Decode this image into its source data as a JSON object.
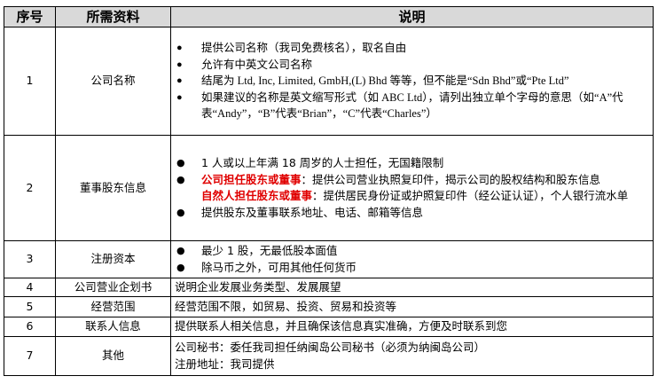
{
  "headers": [
    "序号",
    "所需资料",
    "说明"
  ],
  "rows": [
    {
      "no": "1",
      "item": "公司名称",
      "lines": [
        {
          "text": "提供公司名称（我司免费核名），取名自由"
        },
        {
          "text": "允许有中英文公司名称"
        },
        {
          "text": "结尾为 Ltd, Inc, Limited, GmbH,(L) Bhd 等等，但不能是“Sdn Bhd”或“Pte Ltd”"
        },
        {
          "text": " 如果建议的名称是英文缩写形式（如 ABC Ltd），请列出独立单个字母的意思（如“A”代表“Andy”，“B”代表“Brian”，“C”代表“Charles”）"
        }
      ]
    },
    {
      "no": "2",
      "item": "董事股东信息",
      "lines": [
        {
          "text": "1 人或以上年满 18 周岁的人士担任，无国籍限制"
        },
        {
          "red": "公司担任股东或董事",
          "text": "：提供公司营业执照复印件，揭示公司的股权结构和股东信息"
        },
        {
          "red": "自然人担任股东或董事",
          "text": "：提供居民身份证或护照复印件（经公证认证），个人银行流水单"
        },
        {
          "text": "提供股东及董事联系地址、电话、邮箱等信息"
        }
      ]
    },
    {
      "no": "3",
      "item": "注册资本",
      "lines": [
        {
          "text": "最少 1 股，无最低股本面值"
        },
        {
          "text": "除马币之外，可用其他任何货币"
        }
      ]
    },
    {
      "no": "4",
      "item": "公司营业企划书",
      "text": "说明企业发展业务类型、发展展望"
    },
    {
      "no": "5",
      "item": "经营范围",
      "text": "经营范围不限，如贸易、投资、贸易和投资等"
    },
    {
      "no": "6",
      "item": "联系人信息",
      "text": "提供联系人相关信息，并且确保该信息真实准确，方便及时联系到您"
    },
    {
      "no": "7",
      "item": "其他",
      "lines2": [
        "公司秘书：委任我司担任纳闽岛公司秘书（必须为纳闽岛公司）",
        "注册地址：我司提供"
      ]
    }
  ]
}
